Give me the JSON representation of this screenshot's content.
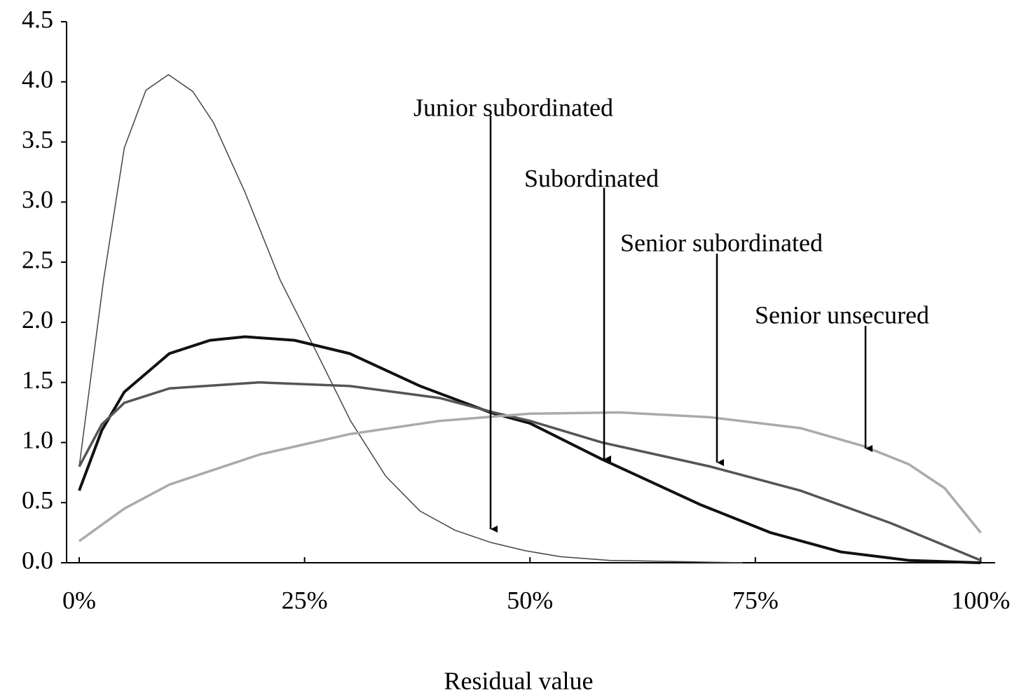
{
  "chart_data": {
    "type": "line",
    "x_label": "Residual value",
    "xlim": [
      -1.4,
      101.6
    ],
    "ylim": [
      0,
      4.5
    ],
    "xticks": [
      {
        "value": 0,
        "label": "0%"
      },
      {
        "value": 25,
        "label": "25%"
      },
      {
        "value": 50,
        "label": "50%"
      },
      {
        "value": 75,
        "label": "75%"
      },
      {
        "value": 100,
        "label": "100%"
      }
    ],
    "yticks": [
      {
        "value": 0,
        "label": "0.0"
      },
      {
        "value": 0.5,
        "label": "0.5"
      },
      {
        "value": 1,
        "label": "1.0"
      },
      {
        "value": 1.5,
        "label": "1.5"
      },
      {
        "value": 2,
        "label": "2.0"
      },
      {
        "value": 2.5,
        "label": "2.5"
      },
      {
        "value": 3,
        "label": "3.0"
      },
      {
        "value": 3.5,
        "label": "3.5"
      },
      {
        "value": 4,
        "label": "4.0"
      },
      {
        "value": 4.5,
        "label": "4.5"
      }
    ],
    "series": [
      {
        "name": "Junior subordinated",
        "color": "#444444",
        "width": 1.5,
        "x": [
          0,
          2.7,
          5,
          7.4,
          9.9,
          12.6,
          14.9,
          18.4,
          22.3,
          26.2,
          30.1,
          34,
          37.8,
          41.7,
          45.6,
          49.5,
          53.4,
          58.8,
          73.6
        ],
        "values": [
          0.8,
          2.35,
          3.45,
          3.93,
          4.06,
          3.92,
          3.66,
          3.08,
          2.35,
          1.77,
          1.18,
          0.72,
          0.43,
          0.27,
          0.17,
          0.1,
          0.05,
          0.02,
          0
        ]
      },
      {
        "name": "Subordinated",
        "color": "#111111",
        "width": 4,
        "x": [
          0,
          2.5,
          5,
          10,
          14.5,
          18.4,
          23.9,
          30,
          37.8,
          45.6,
          50,
          58,
          69,
          76.7,
          84.5,
          92,
          100
        ],
        "values": [
          0.6,
          1.1,
          1.42,
          1.74,
          1.85,
          1.88,
          1.85,
          1.74,
          1.47,
          1.25,
          1.16,
          0.86,
          0.48,
          0.25,
          0.09,
          0.02,
          0
        ]
      },
      {
        "name": "Senior subordinated",
        "color": "#555555",
        "width": 3.5,
        "x": [
          0,
          2.5,
          5,
          10,
          20,
          30,
          40,
          46,
          50,
          58,
          70,
          80,
          90,
          100
        ],
        "values": [
          0.8,
          1.15,
          1.33,
          1.45,
          1.5,
          1.47,
          1.37,
          1.25,
          1.18,
          1.0,
          0.8,
          0.6,
          0.33,
          0.02
        ]
      },
      {
        "name": "Senior unsecured",
        "color": "#aaaaaa",
        "width": 3.5,
        "x": [
          0,
          5,
          10,
          20,
          30,
          40,
          50,
          60,
          70,
          80,
          87,
          92,
          96,
          100
        ],
        "values": [
          0.18,
          0.45,
          0.65,
          0.9,
          1.07,
          1.18,
          1.24,
          1.25,
          1.21,
          1.12,
          0.97,
          0.82,
          0.62,
          0.25
        ]
      }
    ]
  }
}
